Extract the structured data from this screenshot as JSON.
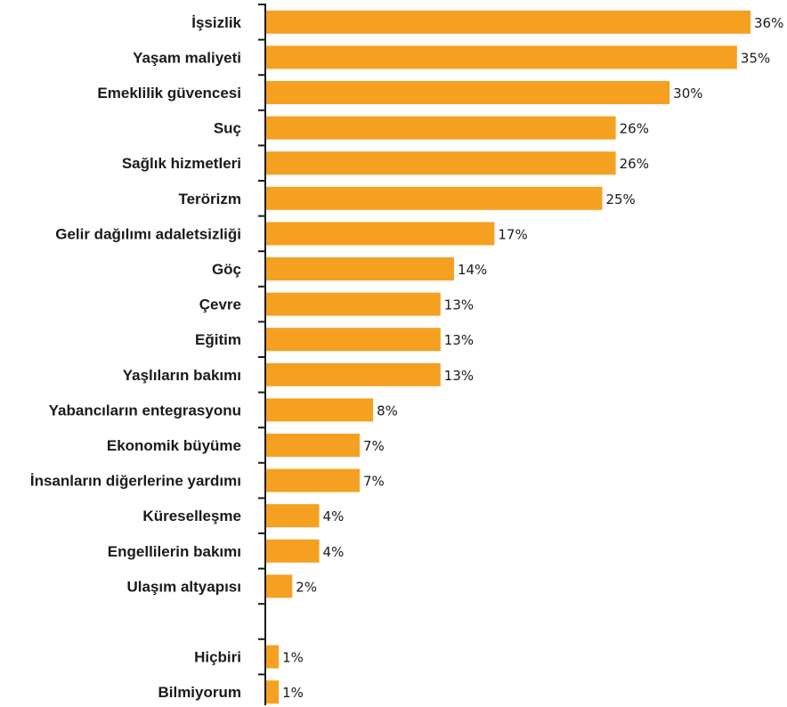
{
  "chart_data": {
    "type": "bar",
    "orientation": "horizontal",
    "bar_color": "#F5A020",
    "categories": [
      "İşsizlik",
      "Yaşam maliyeti",
      "Emeklilik güvencesi",
      "Suç",
      "Sağlık hizmetleri",
      "Terörizm",
      "Gelir dağılımı adaletsizliği",
      "Göç",
      "Çevre",
      "Eğitim",
      "Yaşlıların bakımı",
      "Yabancıların entegrasyonu",
      "Ekonomik büyüme",
      "İnsanların diğerlerine yardımı",
      "Küreselleşme",
      "Engellilerin bakımı",
      "Ulaşım altyapısı",
      "",
      "Hiçbiri",
      "Bilmiyorum"
    ],
    "values": [
      36,
      35,
      30,
      26,
      26,
      25,
      17,
      14,
      13,
      13,
      13,
      8,
      7,
      7,
      4,
      4,
      2,
      null,
      1,
      1
    ],
    "value_labels": [
      "36%",
      "35%",
      "30%",
      "26%",
      "26%",
      "25%",
      "17%",
      "14%",
      "13%",
      "13%",
      "13%",
      "8%",
      "7%",
      "7%",
      "4%",
      "4%",
      "2%",
      "",
      "1%",
      "1%"
    ],
    "xlim": [
      0,
      36
    ],
    "grid": false,
    "legend": "none"
  }
}
